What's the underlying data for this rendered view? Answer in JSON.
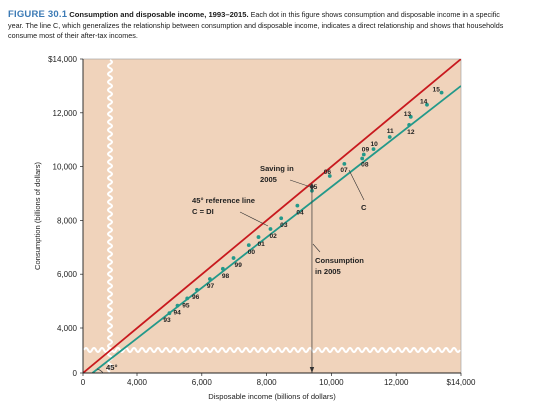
{
  "caption": {
    "figure_label": "FIGURE 30.1",
    "title": "Consumption and disposable income, 1993–2015.",
    "text": "Each dot in this figure shows consumption and disposable income in a specific year. The line C, which generalizes the relationship between consumption and disposable income, indicates a direct relationship and shows that households consume most of their after-tax incomes."
  },
  "annotations": {
    "saving": "Saving in 2005",
    "reference": "45° reference line C = DI",
    "consumption": "Consumption in 2005",
    "c_line": "C",
    "angle": "45°"
  },
  "colors": {
    "plot_bg": "#f0d3bb",
    "reference_line": "#c8191e",
    "consumption_line": "#23998a",
    "dots": "#23998a"
  },
  "chart_data": {
    "type": "scatter",
    "xlabel": "Disposable income (billions of dollars)",
    "ylabel": "Consumption (billions of dollars)",
    "xlim": [
      0,
      14000
    ],
    "ylim": [
      0,
      14000
    ],
    "x_ticks": [
      {
        "value": 0,
        "label": "0"
      },
      {
        "value": 4000,
        "label": "4,000"
      },
      {
        "value": 6000,
        "label": "6,000"
      },
      {
        "value": 8000,
        "label": "8,000"
      },
      {
        "value": 10000,
        "label": "10,000"
      },
      {
        "value": 12000,
        "label": "12,000"
      },
      {
        "value": 14000,
        "label": "$14,000"
      }
    ],
    "y_ticks": [
      {
        "value": 0,
        "label": "0"
      },
      {
        "value": 4000,
        "label": "4,000"
      },
      {
        "value": 6000,
        "label": "6,000"
      },
      {
        "value": 8000,
        "label": "8,000"
      },
      {
        "value": 10000,
        "label": "10,000"
      },
      {
        "value": 12000,
        "label": "12,000"
      },
      {
        "value": 14000,
        "label": "$14,000"
      }
    ],
    "axis_breaks": true,
    "grid": false,
    "points": [
      {
        "label": "93",
        "x": 5000,
        "y": 4550
      },
      {
        "label": "94",
        "x": 5250,
        "y": 4830
      },
      {
        "label": "95",
        "x": 5550,
        "y": 5100
      },
      {
        "label": "96",
        "x": 5850,
        "y": 5420
      },
      {
        "label": "97",
        "x": 6250,
        "y": 5820
      },
      {
        "label": "98",
        "x": 6650,
        "y": 6200
      },
      {
        "label": "99",
        "x": 6980,
        "y": 6600
      },
      {
        "label": "00",
        "x": 7450,
        "y": 7080
      },
      {
        "label": "01",
        "x": 7750,
        "y": 7380
      },
      {
        "label": "02",
        "x": 8120,
        "y": 7680
      },
      {
        "label": "03",
        "x": 8450,
        "y": 8080
      },
      {
        "label": "04",
        "x": 8950,
        "y": 8550
      },
      {
        "label": "05",
        "x": 9400,
        "y": 9100
      },
      {
        "label": "06",
        "x": 9950,
        "y": 9650
      },
      {
        "label": "07",
        "x": 10400,
        "y": 10100
      },
      {
        "label": "08",
        "x": 10950,
        "y": 10300
      },
      {
        "label": "09",
        "x": 11000,
        "y": 10450
      },
      {
        "label": "10",
        "x": 11300,
        "y": 10650
      },
      {
        "label": "11",
        "x": 11800,
        "y": 11100
      },
      {
        "label": "12",
        "x": 12400,
        "y": 11550
      },
      {
        "label": "13",
        "x": 12450,
        "y": 11850
      },
      {
        "label": "14",
        "x": 12950,
        "y": 12300
      },
      {
        "label": "15",
        "x": 13400,
        "y": 12750
      }
    ],
    "lines": [
      {
        "name": "45° reference line",
        "type": "reference",
        "from": [
          0,
          0
        ],
        "to": [
          14000,
          14000
        ]
      },
      {
        "name": "C",
        "type": "consumption",
        "from": [
          700,
          0
        ],
        "to": [
          14000,
          13000
        ]
      }
    ],
    "highlight_x": 9400
  }
}
